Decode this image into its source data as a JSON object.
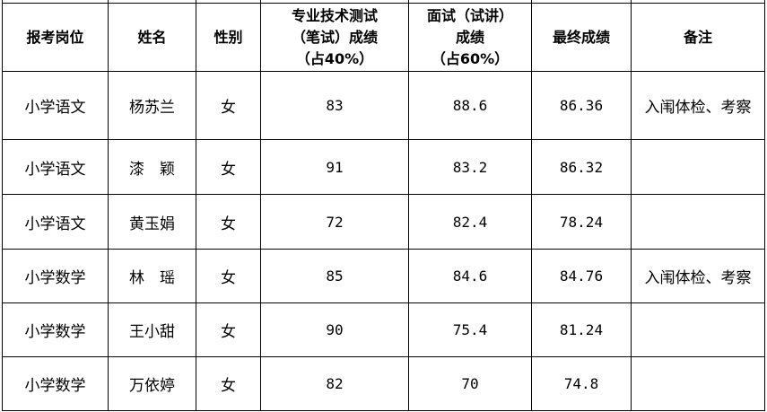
{
  "table": {
    "headers": [
      "报考岗位",
      "姓名",
      "性别",
      "专业技术测试（笔试）成绩（占40%）",
      "面试（试讲）成绩（占60%）",
      "最终成绩",
      "备注"
    ],
    "header_lines": [
      [
        "报考岗位"
      ],
      [
        "姓名"
      ],
      [
        "性别"
      ],
      [
        "专业技术测试",
        "（笔试）成绩",
        "（占40%）"
      ],
      [
        "面试（试讲）",
        "成绩",
        "（占60%）"
      ],
      [
        "最终成绩"
      ],
      [
        "备注"
      ]
    ],
    "rows": [
      [
        "小学语文",
        "杨苏兰",
        "女",
        "83",
        "88.6",
        "86.36",
        "入闱体检、考察"
      ],
      [
        "小学语文",
        "漆　颖",
        "女",
        "91",
        "83.2",
        "86.32",
        ""
      ],
      [
        "小学语文",
        "黄玉娟",
        "女",
        "72",
        "82.4",
        "78.24",
        ""
      ],
      [
        "小学数学",
        "林　瑶",
        "女",
        "85",
        "84.6",
        "84.76",
        "入闱体检、考察"
      ],
      [
        "小学数学",
        "王小甜",
        "女",
        "90",
        "75.4",
        "81.24",
        ""
      ],
      [
        "小学数学",
        "万依婷",
        "女",
        "82",
        "70",
        "74.8",
        ""
      ]
    ]
  }
}
